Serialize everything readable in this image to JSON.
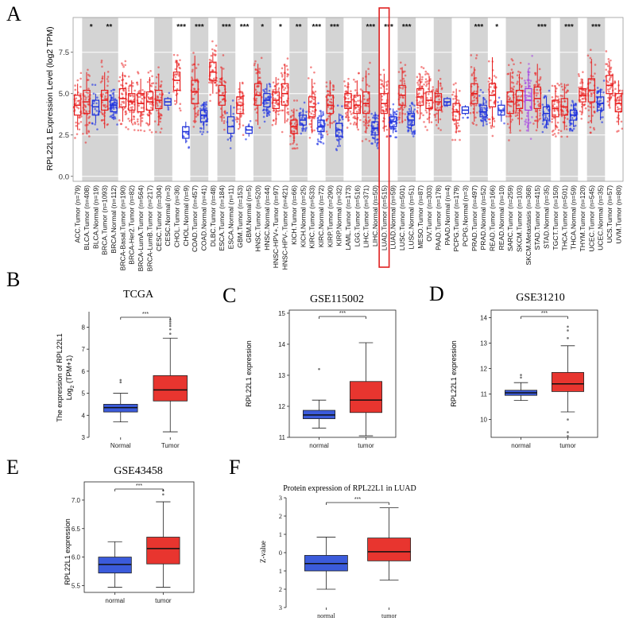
{
  "figure": {
    "panel_letters": [
      "A",
      "B",
      "C",
      "D",
      "E",
      "F"
    ]
  },
  "chart_data": [
    {
      "panel": "A",
      "type": "boxplot",
      "title": "",
      "ylabel": "RPL22L1 Expression Level (log2 TPM)",
      "ylim": [
        -0.3,
        9.6
      ],
      "yticks": [
        0.0,
        2.5,
        5.0,
        7.5
      ],
      "highlighted_label": "LUAD.Tumor (n=515)",
      "groups": [
        {
          "label": "ACC.Tumor (n=79)",
          "kind": "tumor",
          "q1": 3.7,
          "median": 4.3,
          "q3": 4.9,
          "lo": 2.8,
          "hi": 5.6,
          "sig": "",
          "shade": false
        },
        {
          "label": "BLCA.Tumor (n=408)",
          "kind": "tumor",
          "q1": 3.8,
          "median": 4.5,
          "q3": 5.2,
          "lo": 2.6,
          "hi": 6.3,
          "sig": "*",
          "shade": true
        },
        {
          "label": "BLCA.Normal (n=19)",
          "kind": "normal",
          "q1": 3.7,
          "median": 4.2,
          "q3": 4.6,
          "lo": 3.2,
          "hi": 5.0,
          "sig": "",
          "shade": true
        },
        {
          "label": "BRCA.Tumor (n=1093)",
          "kind": "tumor",
          "q1": 4.0,
          "median": 4.6,
          "q3": 5.2,
          "lo": 2.9,
          "hi": 6.3,
          "sig": "**",
          "shade": true
        },
        {
          "label": "BRCA.Normal (n=112)",
          "kind": "normal",
          "q1": 3.9,
          "median": 4.3,
          "q3": 4.6,
          "lo": 3.4,
          "hi": 5.1,
          "sig": "",
          "shade": true
        },
        {
          "label": "BRCA-Basal.Tumor (n=190)",
          "kind": "tumor",
          "q1": 4.2,
          "median": 4.7,
          "q3": 5.3,
          "lo": 3.3,
          "hi": 6.3,
          "sig": "",
          "shade": false
        },
        {
          "label": "BRCA-Her2.Tumor (n=82)",
          "kind": "tumor",
          "q1": 4.0,
          "median": 4.5,
          "q3": 5.0,
          "lo": 3.2,
          "hi": 5.8,
          "sig": "",
          "shade": false
        },
        {
          "label": "BRCA-LumA.Tumor (n=564)",
          "kind": "tumor",
          "q1": 3.9,
          "median": 4.4,
          "q3": 5.0,
          "lo": 3.0,
          "hi": 5.9,
          "sig": "",
          "shade": false
        },
        {
          "label": "BRCA-LumB.Tumor (n=217)",
          "kind": "tumor",
          "q1": 4.0,
          "median": 4.5,
          "q3": 5.1,
          "lo": 3.1,
          "hi": 6.0,
          "sig": "",
          "shade": false
        },
        {
          "label": "CESC.Tumor (n=304)",
          "kind": "tumor",
          "q1": 4.1,
          "median": 4.6,
          "q3": 5.2,
          "lo": 3.1,
          "hi": 6.2,
          "sig": "",
          "shade": true
        },
        {
          "label": "CESC.Normal (n=3)",
          "kind": "normal",
          "q1": 4.3,
          "median": 4.5,
          "q3": 4.7,
          "lo": 4.2,
          "hi": 4.8,
          "sig": "",
          "shade": true
        },
        {
          "label": "CHOL.Tumor (n=36)",
          "kind": "tumor",
          "q1": 5.2,
          "median": 5.8,
          "q3": 6.3,
          "lo": 4.4,
          "hi": 7.0,
          "sig": "***",
          "shade": false
        },
        {
          "label": "CHOL.Normal (n=9)",
          "kind": "normal",
          "q1": 2.3,
          "median": 2.7,
          "q3": 3.0,
          "lo": 2.0,
          "hi": 3.3,
          "sig": "",
          "shade": false
        },
        {
          "label": "COAD.Tumor (n=457)",
          "kind": "tumor",
          "q1": 4.4,
          "median": 5.1,
          "q3": 5.8,
          "lo": 3.2,
          "hi": 7.3,
          "sig": "***",
          "shade": true
        },
        {
          "label": "COAD.Normal (n=41)",
          "kind": "normal",
          "q1": 3.3,
          "median": 3.7,
          "q3": 4.0,
          "lo": 2.8,
          "hi": 4.5,
          "sig": "",
          "shade": true
        },
        {
          "label": "DLBC.Tumor (n=48)",
          "kind": "tumor",
          "q1": 5.8,
          "median": 6.3,
          "q3": 6.9,
          "lo": 5.0,
          "hi": 7.5,
          "sig": "",
          "shade": false
        },
        {
          "label": "ESCA.Tumor (n=184)",
          "kind": "tumor",
          "q1": 4.3,
          "median": 4.9,
          "q3": 5.5,
          "lo": 3.3,
          "hi": 6.6,
          "sig": "***",
          "shade": true
        },
        {
          "label": "ESCA.Normal (n=11)",
          "kind": "normal",
          "q1": 2.6,
          "median": 3.0,
          "q3": 3.6,
          "lo": 2.1,
          "hi": 4.3,
          "sig": "",
          "shade": true
        },
        {
          "label": "GBM.Tumor (n=153)",
          "kind": "tumor",
          "q1": 3.8,
          "median": 4.3,
          "q3": 4.8,
          "lo": 2.9,
          "hi": 5.7,
          "sig": "***",
          "shade": false
        },
        {
          "label": "GBM.Normal (n=5)",
          "kind": "normal",
          "q1": 2.6,
          "median": 2.8,
          "q3": 3.0,
          "lo": 2.4,
          "hi": 3.2,
          "sig": "",
          "shade": false
        },
        {
          "label": "HNSC.Tumor (n=520)",
          "kind": "tumor",
          "q1": 4.3,
          "median": 4.9,
          "q3": 5.6,
          "lo": 3.1,
          "hi": 6.8,
          "sig": "*",
          "shade": true
        },
        {
          "label": "HNSC.Normal (n=44)",
          "kind": "normal",
          "q1": 4.2,
          "median": 4.6,
          "q3": 5.0,
          "lo": 3.6,
          "hi": 5.6,
          "sig": "",
          "shade": true
        },
        {
          "label": "HNSC-HPV+.Tumor (n=97)",
          "kind": "tumor",
          "q1": 4.1,
          "median": 4.6,
          "q3": 5.1,
          "lo": 3.2,
          "hi": 6.0,
          "sig": "*",
          "shade": false
        },
        {
          "label": "HNSC-HPV-.Tumor (n=421)",
          "kind": "tumor",
          "q1": 4.3,
          "median": 5.0,
          "q3": 5.6,
          "lo": 3.2,
          "hi": 6.8,
          "sig": "",
          "shade": false
        },
        {
          "label": "KICH.Tumor (n=66)",
          "kind": "tumor",
          "q1": 2.6,
          "median": 3.0,
          "q3": 3.4,
          "lo": 2.0,
          "hi": 4.1,
          "sig": "**",
          "shade": true
        },
        {
          "label": "KICH.Normal (n=25)",
          "kind": "normal",
          "q1": 3.1,
          "median": 3.4,
          "q3": 3.7,
          "lo": 2.7,
          "hi": 4.1,
          "sig": "",
          "shade": true
        },
        {
          "label": "KIRC.Tumor (n=533)",
          "kind": "tumor",
          "q1": 3.6,
          "median": 4.2,
          "q3": 4.8,
          "lo": 2.6,
          "hi": 5.9,
          "sig": "***",
          "shade": false
        },
        {
          "label": "KIRC.Normal (n=72)",
          "kind": "normal",
          "q1": 2.7,
          "median": 3.0,
          "q3": 3.4,
          "lo": 2.2,
          "hi": 4.0,
          "sig": "",
          "shade": false
        },
        {
          "label": "KIRP.Tumor (n=290)",
          "kind": "tumor",
          "q1": 3.8,
          "median": 4.3,
          "q3": 4.9,
          "lo": 2.9,
          "hi": 5.8,
          "sig": "***",
          "shade": true
        },
        {
          "label": "KIRP.Normal (n=32)",
          "kind": "normal",
          "q1": 2.4,
          "median": 2.8,
          "q3": 3.2,
          "lo": 1.9,
          "hi": 3.8,
          "sig": "",
          "shade": true
        },
        {
          "label": "LAML.Tumor (n=173)",
          "kind": "tumor",
          "q1": 4.1,
          "median": 4.5,
          "q3": 5.0,
          "lo": 3.3,
          "hi": 5.7,
          "sig": "",
          "shade": false
        },
        {
          "label": "LGG.Tumor (n=516)",
          "kind": "tumor",
          "q1": 3.8,
          "median": 4.3,
          "q3": 4.9,
          "lo": 2.9,
          "hi": 5.8,
          "sig": "",
          "shade": false
        },
        {
          "label": "LIHC.Tumor (n=371)",
          "kind": "tumor",
          "q1": 3.8,
          "median": 4.4,
          "q3": 5.1,
          "lo": 2.6,
          "hi": 6.4,
          "sig": "***",
          "shade": true
        },
        {
          "label": "LIHC.Normal (n=50)",
          "kind": "normal",
          "q1": 2.5,
          "median": 2.9,
          "q3": 3.3,
          "lo": 2.0,
          "hi": 3.9,
          "sig": "",
          "shade": true
        },
        {
          "label": "LUAD.Tumor (n=515)",
          "kind": "tumor",
          "q1": 3.8,
          "median": 4.4,
          "q3": 5.0,
          "lo": 2.7,
          "hi": 6.2,
          "sig": "***",
          "shade": false
        },
        {
          "label": "LUAD.Normal (n=59)",
          "kind": "normal",
          "q1": 3.0,
          "median": 3.3,
          "q3": 3.6,
          "lo": 2.6,
          "hi": 4.1,
          "sig": "",
          "shade": false
        },
        {
          "label": "LUSC.Tumor (n=501)",
          "kind": "tumor",
          "q1": 4.3,
          "median": 4.9,
          "q3": 5.5,
          "lo": 3.2,
          "hi": 6.6,
          "sig": "***",
          "shade": true
        },
        {
          "label": "LUSC.Normal (n=51)",
          "kind": "normal",
          "q1": 3.1,
          "median": 3.4,
          "q3": 3.8,
          "lo": 2.7,
          "hi": 4.2,
          "sig": "",
          "shade": true
        },
        {
          "label": "MESO.Tumor (n=87)",
          "kind": "tumor",
          "q1": 4.3,
          "median": 4.8,
          "q3": 5.3,
          "lo": 3.5,
          "hi": 6.2,
          "sig": "",
          "shade": false
        },
        {
          "label": "OV.Tumor (n=303)",
          "kind": "tumor",
          "q1": 4.1,
          "median": 4.6,
          "q3": 5.1,
          "lo": 3.2,
          "hi": 6.0,
          "sig": "",
          "shade": false
        },
        {
          "label": "PAAD.Tumor (n=178)",
          "kind": "tumor",
          "q1": 4.0,
          "median": 4.5,
          "q3": 5.0,
          "lo": 3.2,
          "hi": 5.8,
          "sig": "",
          "shade": true
        },
        {
          "label": "PAAD.Normal (n=4)",
          "kind": "normal",
          "q1": 4.3,
          "median": 4.5,
          "q3": 4.7,
          "lo": 4.2,
          "hi": 4.8,
          "sig": "",
          "shade": true
        },
        {
          "label": "PCPG.Tumor (n=179)",
          "kind": "tumor",
          "q1": 3.4,
          "median": 3.9,
          "q3": 4.4,
          "lo": 2.6,
          "hi": 5.3,
          "sig": "",
          "shade": false
        },
        {
          "label": "PCPG.Normal (n=3)",
          "kind": "normal",
          "q1": 3.8,
          "median": 4.0,
          "q3": 4.2,
          "lo": 3.7,
          "hi": 4.3,
          "sig": "",
          "shade": false
        },
        {
          "label": "PRAD.Tumor (n=497)",
          "kind": "tumor",
          "q1": 4.4,
          "median": 5.0,
          "q3": 5.6,
          "lo": 3.3,
          "hi": 6.6,
          "sig": "***",
          "shade": true
        },
        {
          "label": "PRAD.Normal (n=52)",
          "kind": "normal",
          "q1": 3.6,
          "median": 3.9,
          "q3": 4.3,
          "lo": 3.1,
          "hi": 4.8,
          "sig": "",
          "shade": true
        },
        {
          "label": "READ.Tumor (n=166)",
          "kind": "tumor",
          "q1": 4.2,
          "median": 4.9,
          "q3": 5.6,
          "lo": 3.0,
          "hi": 7.2,
          "sig": "*",
          "shade": false
        },
        {
          "label": "READ.Normal (n=10)",
          "kind": "normal",
          "q1": 3.7,
          "median": 4.0,
          "q3": 4.3,
          "lo": 3.3,
          "hi": 4.6,
          "sig": "",
          "shade": false
        },
        {
          "label": "SARC.Tumor (n=259)",
          "kind": "tumor",
          "q1": 3.8,
          "median": 4.5,
          "q3": 5.1,
          "lo": 2.7,
          "hi": 6.3,
          "sig": "",
          "shade": true
        },
        {
          "label": "SKCM.Tumor (n=103)",
          "kind": "tumor",
          "q1": 4.1,
          "median": 4.6,
          "q3": 5.2,
          "lo": 3.1,
          "hi": 6.2,
          "sig": "",
          "shade": true
        },
        {
          "label": "SKCM.Metastasis (n=368)",
          "kind": "metastasis",
          "q1": 4.0,
          "median": 4.6,
          "q3": 5.3,
          "lo": 2.7,
          "hi": 6.5,
          "sig": "",
          "shade": true
        },
        {
          "label": "STAD.Tumor (n=415)",
          "kind": "tumor",
          "q1": 4.1,
          "median": 4.7,
          "q3": 5.4,
          "lo": 2.9,
          "hi": 6.8,
          "sig": "***",
          "shade": true
        },
        {
          "label": "STAD.Normal (n=35)",
          "kind": "normal",
          "q1": 3.4,
          "median": 3.8,
          "q3": 4.2,
          "lo": 2.9,
          "hi": 4.8,
          "sig": "",
          "shade": true
        },
        {
          "label": "TGCT.Tumor (n=150)",
          "kind": "tumor",
          "q1": 3.6,
          "median": 4.1,
          "q3": 4.6,
          "lo": 2.8,
          "hi": 5.5,
          "sig": "",
          "shade": false
        },
        {
          "label": "THCA.Tumor (n=501)",
          "kind": "tumor",
          "q1": 3.7,
          "median": 4.2,
          "q3": 4.7,
          "lo": 2.8,
          "hi": 5.6,
          "sig": "***",
          "shade": true
        },
        {
          "label": "THCA.Normal (n=59)",
          "kind": "normal",
          "q1": 3.4,
          "median": 3.7,
          "q3": 4.0,
          "lo": 3.0,
          "hi": 4.4,
          "sig": "",
          "shade": true
        },
        {
          "label": "THYM.Tumor (n=120)",
          "kind": "tumor",
          "q1": 4.5,
          "median": 4.9,
          "q3": 5.3,
          "lo": 3.8,
          "hi": 5.9,
          "sig": "",
          "shade": false
        },
        {
          "label": "UCEC.Tumor (n=545)",
          "kind": "tumor",
          "q1": 4.5,
          "median": 5.2,
          "q3": 5.9,
          "lo": 3.2,
          "hi": 7.1,
          "sig": "***",
          "shade": true
        },
        {
          "label": "UCEC.Normal (n=35)",
          "kind": "normal",
          "q1": 4.0,
          "median": 4.4,
          "q3": 4.8,
          "lo": 3.4,
          "hi": 5.3,
          "sig": "",
          "shade": true
        },
        {
          "label": "UCS.Tumor (n=57)",
          "kind": "tumor",
          "q1": 5.0,
          "median": 5.5,
          "q3": 6.1,
          "lo": 4.2,
          "hi": 6.9,
          "sig": "",
          "shade": false
        },
        {
          "label": "UVM.Tumor (n=80)",
          "kind": "tumor",
          "q1": 3.9,
          "median": 4.4,
          "q3": 5.0,
          "lo": 3.1,
          "hi": 5.8,
          "sig": "",
          "shade": false
        }
      ]
    },
    {
      "panel": "B",
      "type": "boxplot",
      "title": "TCGA",
      "ylabel_line1": "The expression of RPL22L1",
      "ylabel_log": "Log",
      "ylabel_sub": "2",
      "ylabel_tail": "(TPM+1)",
      "xlabel": "",
      "ylim": [
        3,
        8.7
      ],
      "yticks": [
        "3",
        "4",
        "5",
        "6",
        "7",
        "8"
      ],
      "significance": "***",
      "boxes": [
        {
          "label": "Normal",
          "q1": 4.15,
          "median": 4.35,
          "q3": 4.5,
          "lo": 3.7,
          "hi": 5.0,
          "color": "#3b5bdb",
          "outliers": [
            5.5,
            5.6
          ]
        },
        {
          "label": "Tumor",
          "q1": 4.65,
          "median": 5.15,
          "q3": 5.8,
          "lo": 3.25,
          "hi": 7.5,
          "color": "#e8352f",
          "outliers": [
            7.7,
            7.9,
            8.05,
            8.15,
            8.25,
            8.35
          ]
        }
      ]
    },
    {
      "panel": "C",
      "type": "boxplot",
      "title": "GSE115002",
      "ylabel": "RPL22L1 expression",
      "ylim": [
        11,
        15.1
      ],
      "yticks": [
        "11",
        "12",
        "13",
        "14",
        "15"
      ],
      "significance": "***",
      "boxes": [
        {
          "label": "normal",
          "q1": 11.6,
          "median": 11.72,
          "q3": 11.87,
          "lo": 11.3,
          "hi": 12.2,
          "color": "#3b5bdb",
          "outliers": [
            13.2
          ]
        },
        {
          "label": "tumor",
          "q1": 11.8,
          "median": 12.2,
          "q3": 12.8,
          "lo": 11.05,
          "hi": 14.05,
          "color": "#e8352f",
          "outliers": []
        }
      ]
    },
    {
      "panel": "D",
      "type": "boxplot",
      "title": "GSE31210",
      "ylabel": "RPL22L1 expression",
      "ylim": [
        9.3,
        14.3
      ],
      "yticks": [
        "10",
        "11",
        "12",
        "13",
        "14"
      ],
      "significance": "***",
      "boxes": [
        {
          "label": "normal",
          "q1": 10.95,
          "median": 11.05,
          "q3": 11.15,
          "lo": 10.75,
          "hi": 11.45,
          "color": "#3b5bdb",
          "outliers": [
            11.65,
            11.75
          ]
        },
        {
          "label": "tumor",
          "q1": 11.1,
          "median": 11.4,
          "q3": 11.85,
          "lo": 10.3,
          "hi": 12.9,
          "color": "#e8352f",
          "outliers": [
            13.2,
            13.5,
            13.65,
            10.0,
            9.5,
            9.35
          ]
        }
      ]
    },
    {
      "panel": "E",
      "type": "boxplot",
      "title": "GSE43458",
      "ylabel": "RPL22L1 expression",
      "ylim": [
        5.38,
        7.32
      ],
      "yticks": [
        "5.5",
        "6.0",
        "6.5",
        "7.0"
      ],
      "significance": "***",
      "boxes": [
        {
          "label": "normal",
          "q1": 5.72,
          "median": 5.87,
          "q3": 6.0,
          "lo": 5.47,
          "hi": 6.27,
          "color": "#3b5bdb",
          "outliers": []
        },
        {
          "label": "tumor",
          "q1": 5.88,
          "median": 6.15,
          "q3": 6.35,
          "lo": 5.47,
          "hi": 6.97,
          "color": "#e8352f",
          "outliers": [
            7.1,
            7.17
          ]
        }
      ]
    },
    {
      "panel": "F",
      "type": "boxplot",
      "title": "Protein expression of RPL22L1 in LUAD",
      "ylabel": "Z-value",
      "ylim": [
        -3,
        3
      ],
      "yticks": [
        "3",
        "2",
        "1",
        "0",
        "1",
        "2",
        "3"
      ],
      "significance": "***",
      "boxes": [
        {
          "label": "normal",
          "q1": -1.0,
          "median": -0.6,
          "q3": -0.15,
          "lo": -2.0,
          "hi": 0.85,
          "color": "#3b5bdb",
          "outliers": []
        },
        {
          "label": "tumor",
          "q1": -0.45,
          "median": 0.05,
          "q3": 0.8,
          "lo": -1.5,
          "hi": 2.45,
          "color": "#e8352f",
          "outliers": []
        }
      ]
    }
  ]
}
